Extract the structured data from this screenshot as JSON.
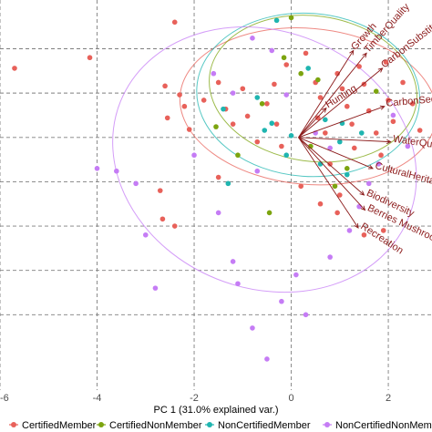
{
  "chart_data": {
    "type": "scatter",
    "title": "",
    "xlabel": "PC 1 (31.0% explained var.)",
    "ylabel": "",
    "xlim": [
      -6,
      2.9
    ],
    "ylim": [
      -2.85,
      1.55
    ],
    "x_ticks": [
      -6,
      -4,
      -2,
      0,
      2
    ],
    "x_tick_labels": [
      "-6",
      "-4",
      "-2",
      "0",
      "2"
    ],
    "y_ticks": [
      1,
      0.5,
      0,
      -0.5,
      -1,
      -1.5,
      -2
    ],
    "grid": true,
    "grid_style": "dashed",
    "legend_position": "bottom",
    "series": [
      {
        "name": "CertifiedMember",
        "color": "#e8615a",
        "points": [
          [
            -5.7,
            0.78
          ],
          [
            -4.15,
            0.9
          ],
          [
            -2.4,
            1.3
          ],
          [
            -2.6,
            0.58
          ],
          [
            -2.3,
            0.48
          ],
          [
            -2.2,
            0.35
          ],
          [
            -2.55,
            0.22
          ],
          [
            -2.1,
            0.09
          ],
          [
            -1.8,
            0.42
          ],
          [
            -1.5,
            0.62
          ],
          [
            -1.35,
            0.32
          ],
          [
            -1.2,
            0.15
          ],
          [
            -1.0,
            0.55
          ],
          [
            -0.9,
            0.24
          ],
          [
            -0.7,
            -0.05
          ],
          [
            -0.5,
            0.38
          ],
          [
            -0.35,
            0.6
          ],
          [
            -0.3,
            0.15
          ],
          [
            -0.2,
            -0.1
          ],
          [
            -0.1,
            0.82
          ],
          [
            0.3,
            0.95
          ],
          [
            0.5,
            0.62
          ],
          [
            0.6,
            0.45
          ],
          [
            0.55,
            0.22
          ],
          [
            0.7,
            0.05
          ],
          [
            0.8,
            -0.3
          ],
          [
            0.95,
            0.72
          ],
          [
            1.05,
            0.55
          ],
          [
            1.15,
            0.35
          ],
          [
            1.25,
            0.15
          ],
          [
            1.3,
            -0.12
          ],
          [
            1.4,
            0.8
          ],
          [
            1.5,
            0.6
          ],
          [
            1.6,
            0.3
          ],
          [
            1.75,
            0.05
          ],
          [
            1.85,
            -0.2
          ],
          [
            2.0,
            0.42
          ],
          [
            2.1,
            0.18
          ],
          [
            1.95,
            0.85
          ],
          [
            2.3,
            0.62
          ],
          [
            2.5,
            0.38
          ],
          [
            2.65,
            0.08
          ],
          [
            -2.7,
            -0.6
          ],
          [
            -2.65,
            -0.92
          ],
          [
            -2.4,
            -1.0
          ],
          [
            -1.5,
            -0.45
          ],
          [
            0.2,
            -0.55
          ],
          [
            0.6,
            -0.75
          ],
          [
            1.0,
            -0.65
          ],
          [
            1.5,
            -1.1
          ],
          [
            1.9,
            -1.05
          ],
          [
            0.95,
            -0.85
          ]
        ]
      },
      {
        "name": "CertifiedNonMember",
        "color": "#7ca40f",
        "points": [
          [
            0.0,
            1.35
          ],
          [
            -0.15,
            0.9
          ],
          [
            0.55,
            0.65
          ],
          [
            -1.1,
            -0.2
          ],
          [
            -0.6,
            0.38
          ],
          [
            0.4,
            -0.1
          ],
          [
            1.15,
            -0.35
          ],
          [
            -0.45,
            -0.85
          ],
          [
            0.9,
            -0.55
          ],
          [
            -1.55,
            0.12
          ],
          [
            0.2,
            0.72
          ],
          [
            1.75,
            0.52
          ]
        ]
      },
      {
        "name": "NonCertifiedMember",
        "color": "#1fb5b0",
        "points": [
          [
            -0.3,
            1.32
          ],
          [
            -1.4,
            0.32
          ],
          [
            -0.7,
            0.45
          ],
          [
            -0.4,
            0.16
          ],
          [
            0.35,
            0.78
          ],
          [
            0.7,
            0.2
          ],
          [
            1.05,
            0.16
          ],
          [
            1.15,
            -0.42
          ],
          [
            -0.1,
            -0.2
          ],
          [
            0.0,
            0.02
          ],
          [
            -1.3,
            -0.52
          ],
          [
            1.45,
            0.05
          ],
          [
            0.6,
            -0.3
          ],
          [
            -0.55,
            0.08
          ],
          [
            1.0,
            -0.05
          ]
        ]
      },
      {
        "name": "NonCertifiedNonMember",
        "color": "#c57cf5",
        "points": [
          [
            -4.0,
            -0.35
          ],
          [
            -3.6,
            -0.38
          ],
          [
            -3.2,
            -0.52
          ],
          [
            -3.0,
            -1.1
          ],
          [
            -2.8,
            -1.7
          ],
          [
            -2.0,
            -0.2
          ],
          [
            -1.5,
            -0.85
          ],
          [
            -1.2,
            -1.4
          ],
          [
            -1.1,
            -1.65
          ],
          [
            -0.8,
            -2.15
          ],
          [
            -0.5,
            -2.5
          ],
          [
            -0.2,
            -1.85
          ],
          [
            0.1,
            -1.55
          ],
          [
            0.3,
            -2.0
          ],
          [
            0.8,
            -1.35
          ],
          [
            1.2,
            -1.05
          ],
          [
            1.4,
            -0.78
          ],
          [
            1.6,
            -0.52
          ],
          [
            1.8,
            -0.3
          ],
          [
            -0.4,
            0.98
          ],
          [
            -1.6,
            0.72
          ],
          [
            -0.1,
            0.48
          ],
          [
            0.5,
            0.05
          ],
          [
            0.8,
            -0.12
          ],
          [
            -0.7,
            -0.38
          ],
          [
            2.1,
            0.25
          ],
          [
            2.4,
            -0.1
          ],
          [
            -0.8,
            1.12
          ],
          [
            -1.2,
            0.5
          ]
        ]
      }
    ],
    "ellipses": [
      {
        "series": "CertifiedMember",
        "cx": 0.35,
        "cy": 0.35,
        "rx": 2.65,
        "ry": 0.88,
        "angle": 5
      },
      {
        "series": "CertifiedNonMember",
        "cx": 0.45,
        "cy": 0.55,
        "rx": 2.15,
        "ry": 0.82,
        "angle": 8
      },
      {
        "series": "NonCertifiedMember",
        "cx": 0.35,
        "cy": 0.48,
        "rx": 2.3,
        "ry": 0.92,
        "angle": 4
      },
      {
        "series": "NonCertifiedNonMember",
        "cx": -0.55,
        "cy": -0.25,
        "rx": 3.2,
        "ry": 1.45,
        "angle": 22
      }
    ],
    "loadings": {
      "origin": [
        0.15,
        0.0
      ],
      "color": "#8b1a1a",
      "vectors": [
        {
          "label": "Growth",
          "x": 1.28,
          "y": 0.98,
          "angle": -48
        },
        {
          "label": "TimberQuality",
          "x": 1.55,
          "y": 0.95,
          "angle": -48
        },
        {
          "label": "CarbonSubstitu",
          "x": 1.88,
          "y": 0.78,
          "angle": -38
        },
        {
          "label": "CarbonSeq",
          "x": 1.92,
          "y": 0.35,
          "angle": -5
        },
        {
          "label": "Hunting",
          "x": 0.72,
          "y": 0.33,
          "angle": -32
        },
        {
          "label": "WaterQua",
          "x": 2.05,
          "y": -0.05,
          "angle": 8
        },
        {
          "label": "CulturalHeritag",
          "x": 1.68,
          "y": -0.35,
          "angle": 15
        },
        {
          "label": "Biodiversity",
          "x": 1.5,
          "y": -0.65,
          "angle": 25
        },
        {
          "label": "Berries Mushroom",
          "x": 1.52,
          "y": -0.82,
          "angle": 25
        },
        {
          "label": "Recreation",
          "x": 1.38,
          "y": -1.02,
          "angle": 33
        }
      ]
    }
  }
}
